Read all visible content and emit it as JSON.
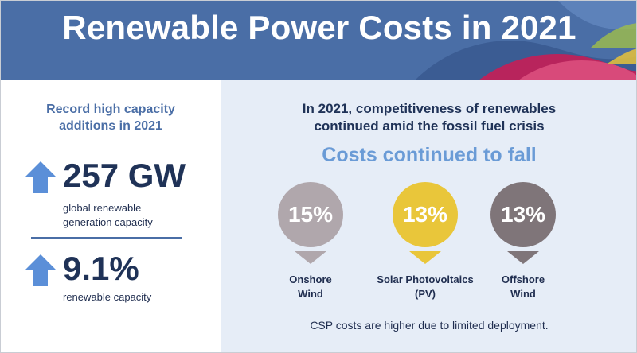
{
  "header": {
    "title": "Renewable Power Costs in 2021"
  },
  "left_panel": {
    "heading": "Record high capacity additions in 2021",
    "stats": [
      {
        "value": "257 GW",
        "description_lines": [
          "global renewable",
          "generation capacity"
        ],
        "icon": "arrow-up-icon"
      },
      {
        "value": "9.1%",
        "description_lines": [
          "renewable capacity"
        ],
        "icon": "arrow-up-icon"
      }
    ]
  },
  "right_panel": {
    "heading_lines": [
      "In 2021, competitiveness of renewables",
      "continued amid the fossil fuel crisis"
    ],
    "subheading": "Costs continued to fall",
    "cost_pins": [
      {
        "percent": "15%",
        "label_lines": [
          "Onshore",
          "Wind"
        ],
        "color": "#b0a7ac"
      },
      {
        "percent": "13%",
        "label_lines": [
          "Solar Photovoltaics",
          "(PV)"
        ],
        "color": "#e9c63a"
      },
      {
        "percent": "13%",
        "label_lines": [
          "Offshore",
          "Wind"
        ],
        "color": "#7f7579"
      }
    ],
    "note": "CSP costs are higher due to limited deployment."
  },
  "colors": {
    "header_bg": "#4a6ea6",
    "accent_blue": "#4a6ea6",
    "light_blue": "#6a9bd6",
    "arrow_blue": "#5b8fd8",
    "right_bg": "#e6edf7",
    "navy_text": "#1f3257"
  }
}
